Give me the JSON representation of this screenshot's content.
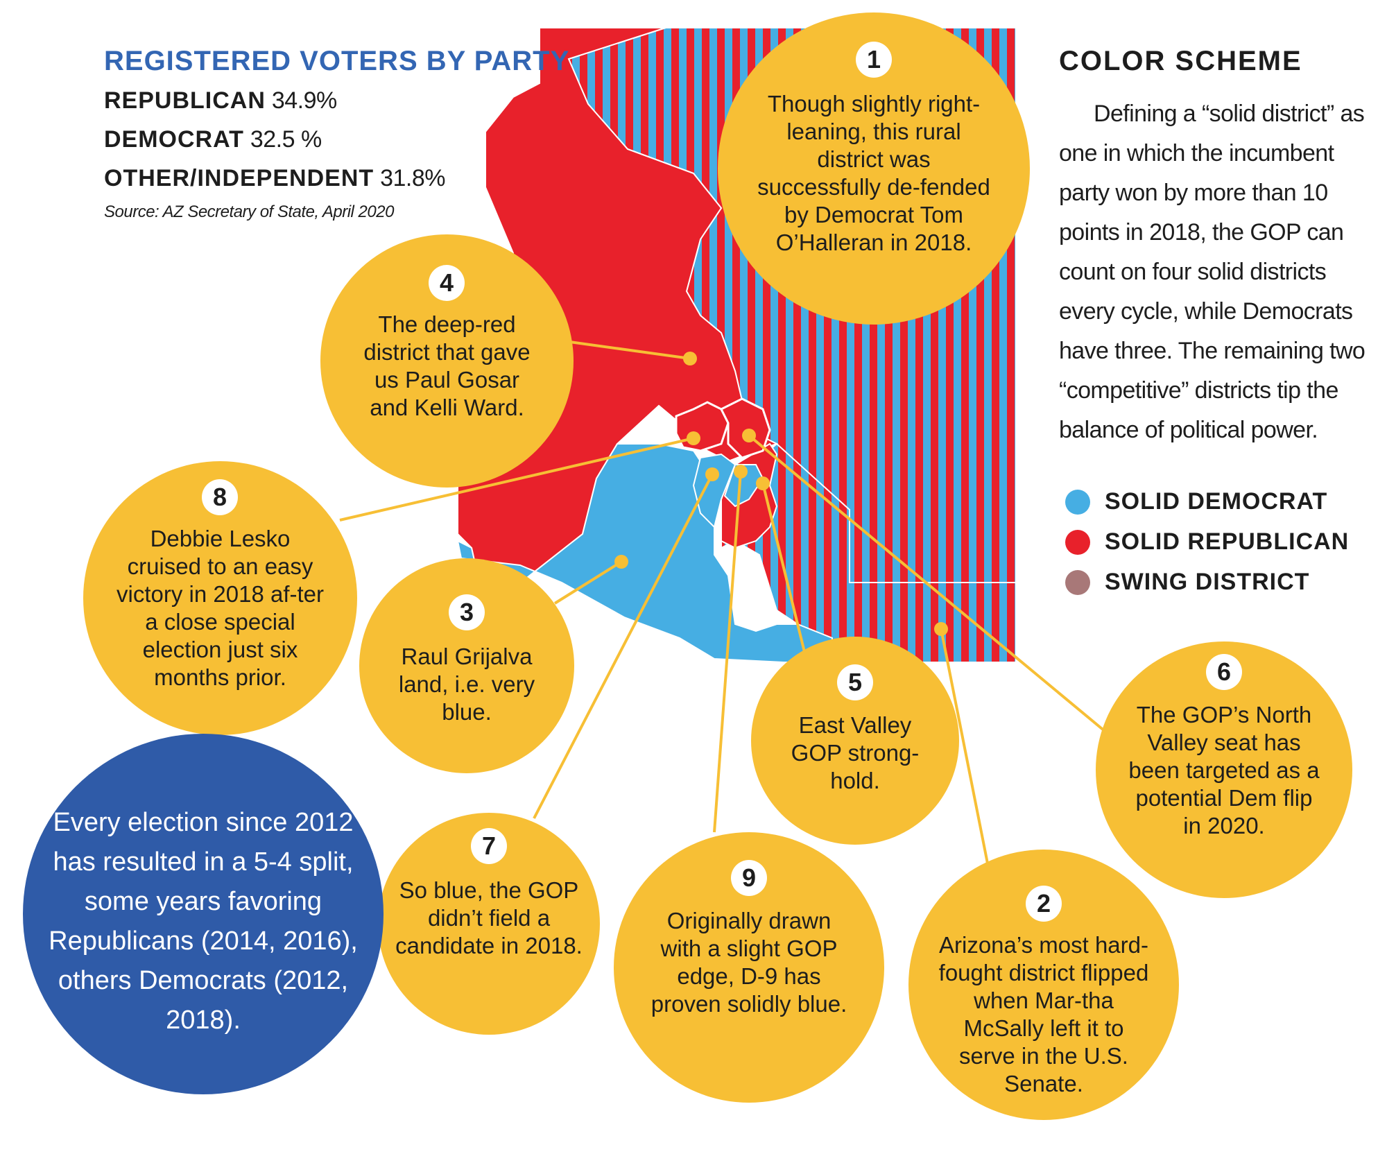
{
  "registered": {
    "title": "REGISTERED VOTERS BY PARTY",
    "rows": [
      {
        "party": "REPUBLICAN",
        "pct": "34.9%"
      },
      {
        "party": "DEMOCRAT",
        "pct": "32.5 %"
      },
      {
        "party": "OTHER/INDEPENDENT",
        "pct": "31.8%"
      }
    ],
    "source": "Source: AZ Secretary of State, April 2020"
  },
  "color_scheme": {
    "title": "COLOR SCHEME",
    "text": "Defining a “solid district” as one in which the incumbent party won by more than 10 points in 2018, the GOP can count on four solid districts every cycle, while Democrats have three. The remaining two “competitive” districts tip the balance of political power."
  },
  "legend": [
    {
      "label": "SOLID DEMOCRAT",
      "color": "#46aee3"
    },
    {
      "label": "SOLID REPUBLICAN",
      "color": "#e8212b"
    },
    {
      "label": "SWING DISTRICT",
      "color": "#a87878"
    }
  ],
  "colors": {
    "democrat": "#46aee3",
    "republican": "#e8212b",
    "bubble": "#f7bf35",
    "callout": "#2f5ba8"
  },
  "districts": [
    {
      "num": "1",
      "text": "Though slightly right-leaning, this rural district was successfully de-fended by Democrat Tom O’Halleran in 2018."
    },
    {
      "num": "2",
      "text": "Arizona’s most hard-fought district flipped when Mar-tha McSally left it to serve in the U.S. Senate."
    },
    {
      "num": "3",
      "text": "Raul Grijalva land, i.e. very blue."
    },
    {
      "num": "4",
      "text": "The deep-red district that gave us Paul Gosar and Kelli Ward."
    },
    {
      "num": "5",
      "text": "East Valley GOP strong-hold."
    },
    {
      "num": "6",
      "text": "The GOP’s North Valley seat has been targeted as a potential Dem flip in 2020."
    },
    {
      "num": "7",
      "text": "So blue, the GOP didn’t field a candidate in 2018."
    },
    {
      "num": "8",
      "text": "Debbie Lesko cruised to an easy victory in 2018 af-ter a close special election just six months prior."
    },
    {
      "num": "9",
      "text": "Originally drawn with a slight GOP edge, D-9 has proven solidly blue."
    }
  ],
  "callout": "Every election since 2012 has resulted in a 5-4 split, some years favoring Republicans (2014, 2016), others Democrats (2012, 2018)."
}
